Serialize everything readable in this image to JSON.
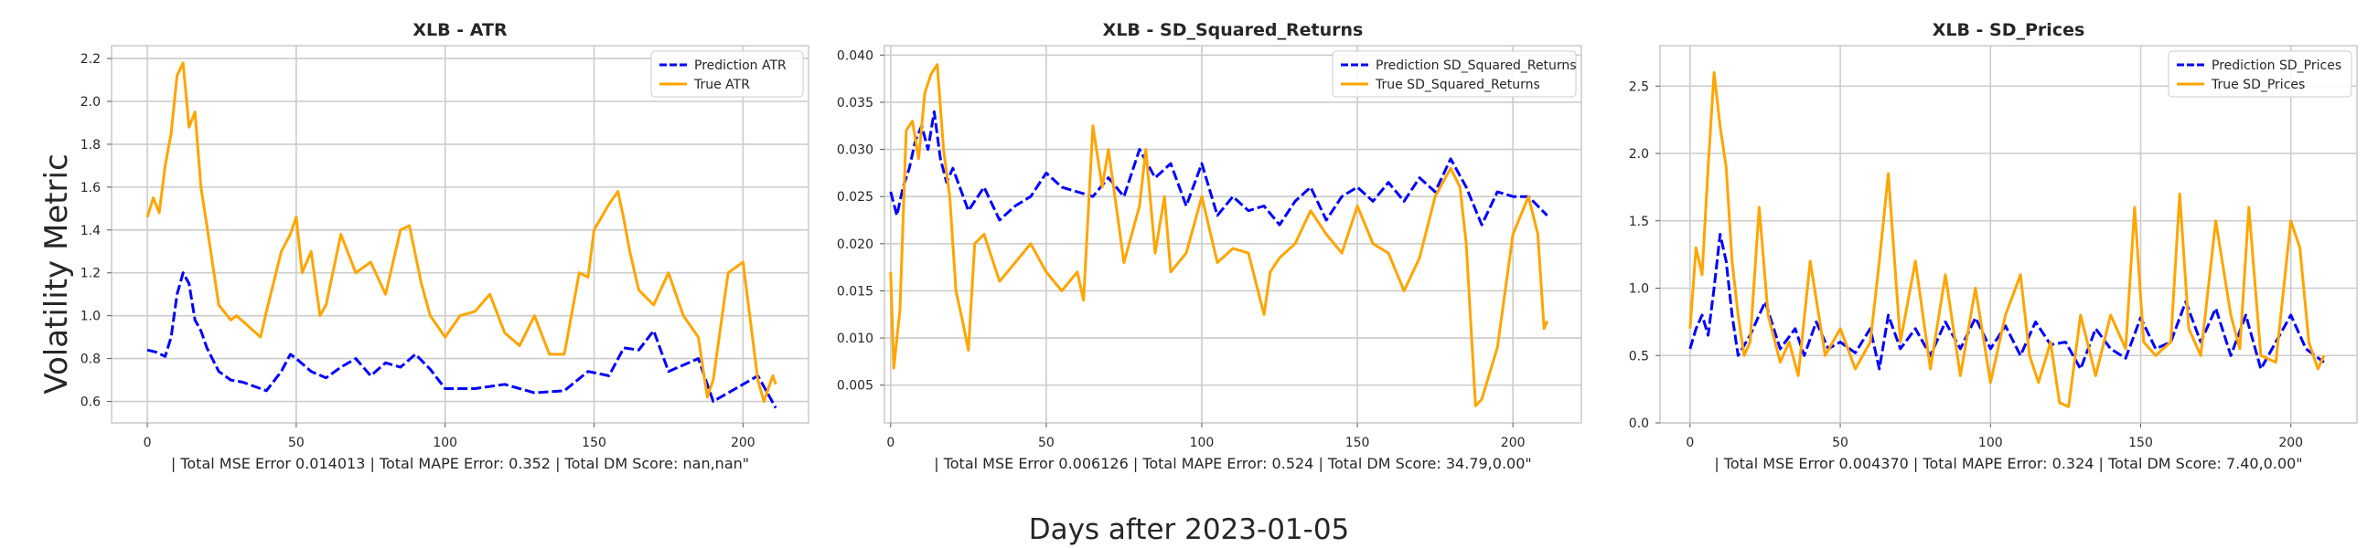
{
  "figure": {
    "suptitle_y": "Volatility Metric",
    "suptitle_x": "Days after 2023-01-05"
  },
  "chart_data": [
    {
      "type": "line",
      "title": "XLB - ATR",
      "xlabel": "| Total MSE Error 0.014013 | Total MAPE Error: 0.352 | Total DM Score: nan,nan\"",
      "ylabel": "",
      "xlim": [
        -12,
        222
      ],
      "ylim": [
        0.5,
        2.26
      ],
      "xticks": [
        0,
        50,
        100,
        150,
        200
      ],
      "yticks": [
        0.6,
        0.8,
        1.0,
        1.2,
        1.4,
        1.6,
        1.8,
        2.0,
        2.2
      ],
      "ytick_labels": [
        "0.6",
        "0.8",
        "1.0",
        "1.2",
        "1.4",
        "1.6",
        "1.8",
        "2.0",
        "2.2"
      ],
      "grid": true,
      "legend": "top-right",
      "series": [
        {
          "name": "Prediction ATR",
          "color": "#0000ff",
          "style": "dashed",
          "x": [
            0,
            3,
            6,
            8,
            10,
            12,
            14,
            16,
            18,
            20,
            24,
            28,
            32,
            36,
            40,
            45,
            48,
            50,
            55,
            60,
            65,
            70,
            75,
            80,
            85,
            90,
            95,
            100,
            110,
            120,
            130,
            140,
            148,
            155,
            160,
            165,
            170,
            175,
            185,
            190,
            200,
            205,
            211
          ],
          "y": [
            0.84,
            0.83,
            0.81,
            0.9,
            1.1,
            1.2,
            1.15,
            0.98,
            0.93,
            0.85,
            0.74,
            0.7,
            0.69,
            0.67,
            0.65,
            0.74,
            0.82,
            0.8,
            0.74,
            0.71,
            0.76,
            0.8,
            0.72,
            0.78,
            0.76,
            0.82,
            0.75,
            0.66,
            0.66,
            0.68,
            0.64,
            0.65,
            0.74,
            0.72,
            0.85,
            0.84,
            0.93,
            0.74,
            0.8,
            0.6,
            0.68,
            0.72,
            0.57
          ]
        },
        {
          "name": "True ATR",
          "color": "#ffa500",
          "style": "solid",
          "x": [
            0,
            2,
            4,
            6,
            8,
            10,
            12,
            14,
            16,
            18,
            20,
            24,
            28,
            30,
            34,
            38,
            40,
            45,
            48,
            50,
            52,
            55,
            58,
            60,
            65,
            70,
            75,
            80,
            85,
            88,
            92,
            95,
            100,
            105,
            110,
            115,
            120,
            125,
            130,
            135,
            140,
            145,
            148,
            150,
            155,
            158,
            160,
            162,
            165,
            170,
            175,
            180,
            185,
            188,
            190,
            195,
            200,
            205,
            207,
            210,
            211
          ],
          "y": [
            1.46,
            1.55,
            1.48,
            1.7,
            1.85,
            2.12,
            2.18,
            1.88,
            1.95,
            1.6,
            1.42,
            1.05,
            0.98,
            1.0,
            0.95,
            0.9,
            1.02,
            1.3,
            1.38,
            1.46,
            1.2,
            1.3,
            1.0,
            1.05,
            1.38,
            1.2,
            1.25,
            1.1,
            1.4,
            1.42,
            1.15,
            1.0,
            0.9,
            1.0,
            1.02,
            1.1,
            0.92,
            0.86,
            1.0,
            0.82,
            0.82,
            1.2,
            1.18,
            1.4,
            1.52,
            1.58,
            1.45,
            1.3,
            1.12,
            1.05,
            1.2,
            1.0,
            0.9,
            0.62,
            0.7,
            1.2,
            1.25,
            0.7,
            0.6,
            0.72,
            0.68
          ]
        }
      ]
    },
    {
      "type": "line",
      "title": "XLB - SD_Squared_Returns",
      "xlabel": "| Total MSE Error 0.006126 | Total MAPE Error: 0.524 | Total DM Score: 34.79,0.00\"",
      "ylabel": "",
      "xlim": [
        -2,
        222
      ],
      "ylim": [
        0.001,
        0.041
      ],
      "xticks": [
        0,
        50,
        100,
        150,
        200
      ],
      "yticks": [
        0.005,
        0.01,
        0.015,
        0.02,
        0.025,
        0.03,
        0.035,
        0.04
      ],
      "ytick_labels": [
        "0.005",
        "0.010",
        "0.015",
        "0.020",
        "0.025",
        "0.030",
        "0.035",
        "0.040"
      ],
      "grid": true,
      "legend": "top-right",
      "series": [
        {
          "name": "Prediction SD_Squared_Returns",
          "color": "#0000ff",
          "style": "dashed",
          "x": [
            0,
            2,
            4,
            6,
            8,
            10,
            12,
            14,
            16,
            18,
            20,
            25,
            30,
            35,
            40,
            45,
            50,
            55,
            60,
            65,
            70,
            75,
            80,
            85,
            90,
            95,
            100,
            105,
            110,
            115,
            120,
            125,
            130,
            135,
            140,
            145,
            150,
            155,
            160,
            165,
            170,
            175,
            180,
            185,
            190,
            195,
            200,
            205,
            211
          ],
          "y": [
            0.0255,
            0.023,
            0.026,
            0.028,
            0.031,
            0.0325,
            0.03,
            0.034,
            0.029,
            0.0265,
            0.028,
            0.0235,
            0.026,
            0.0225,
            0.024,
            0.025,
            0.0275,
            0.026,
            0.0255,
            0.025,
            0.027,
            0.025,
            0.03,
            0.027,
            0.0285,
            0.024,
            0.0285,
            0.023,
            0.025,
            0.0235,
            0.024,
            0.022,
            0.0245,
            0.026,
            0.0225,
            0.025,
            0.026,
            0.0245,
            0.0265,
            0.0245,
            0.027,
            0.0255,
            0.029,
            0.026,
            0.022,
            0.0255,
            0.025,
            0.025,
            0.023
          ]
        },
        {
          "name": "True SD_Squared_Returns",
          "color": "#ffa500",
          "style": "solid",
          "x": [
            0,
            1,
            3,
            5,
            7,
            9,
            11,
            13,
            15,
            17,
            19,
            21,
            23,
            25,
            27,
            30,
            35,
            40,
            45,
            50,
            55,
            60,
            62,
            65,
            68,
            70,
            75,
            80,
            82,
            85,
            88,
            90,
            95,
            100,
            105,
            110,
            115,
            120,
            122,
            125,
            130,
            135,
            140,
            145,
            150,
            155,
            160,
            165,
            170,
            175,
            180,
            183,
            185,
            188,
            190,
            195,
            200,
            205,
            208,
            210,
            211
          ],
          "y": [
            0.017,
            0.0068,
            0.013,
            0.032,
            0.033,
            0.029,
            0.036,
            0.038,
            0.039,
            0.03,
            0.025,
            0.015,
            0.012,
            0.0087,
            0.02,
            0.021,
            0.016,
            0.018,
            0.02,
            0.017,
            0.015,
            0.017,
            0.014,
            0.0325,
            0.026,
            0.03,
            0.018,
            0.024,
            0.03,
            0.019,
            0.025,
            0.017,
            0.019,
            0.025,
            0.018,
            0.0195,
            0.019,
            0.0125,
            0.017,
            0.0185,
            0.02,
            0.0235,
            0.021,
            0.019,
            0.024,
            0.02,
            0.019,
            0.015,
            0.0185,
            0.025,
            0.028,
            0.026,
            0.02,
            0.0028,
            0.0035,
            0.009,
            0.021,
            0.025,
            0.021,
            0.011,
            0.0118
          ]
        }
      ]
    },
    {
      "type": "line",
      "title": "XLB - SD_Prices",
      "xlabel": "| Total MSE Error 0.004370 | Total MAPE Error: 0.324 | Total DM Score: 7.40,0.00\"",
      "ylabel": "",
      "xlim": [
        -10,
        222
      ],
      "ylim": [
        0,
        2.8
      ],
      "xticks": [
        0,
        50,
        100,
        150,
        200
      ],
      "yticks": [
        0.0,
        0.5,
        1.0,
        1.5,
        2.0,
        2.5
      ],
      "ytick_labels": [
        "0.0",
        "0.5",
        "1.0",
        "1.5",
        "2.0",
        "2.5"
      ],
      "grid": true,
      "legend": "top-right",
      "series": [
        {
          "name": "Prediction SD_Prices",
          "color": "#0000ff",
          "style": "dashed",
          "x": [
            0,
            2,
            4,
            6,
            8,
            10,
            12,
            14,
            16,
            20,
            25,
            30,
            35,
            38,
            42,
            46,
            50,
            55,
            60,
            63,
            66,
            70,
            75,
            80,
            85,
            90,
            95,
            100,
            105,
            110,
            115,
            120,
            125,
            130,
            135,
            140,
            145,
            150,
            155,
            160,
            165,
            170,
            175,
            180,
            185,
            190,
            195,
            200,
            205,
            211
          ],
          "y": [
            0.55,
            0.7,
            0.8,
            0.65,
            1.0,
            1.4,
            1.2,
            0.8,
            0.5,
            0.65,
            0.9,
            0.55,
            0.7,
            0.5,
            0.75,
            0.55,
            0.6,
            0.52,
            0.7,
            0.4,
            0.8,
            0.55,
            0.7,
            0.5,
            0.75,
            0.55,
            0.78,
            0.55,
            0.72,
            0.5,
            0.75,
            0.58,
            0.6,
            0.4,
            0.7,
            0.55,
            0.48,
            0.78,
            0.55,
            0.6,
            0.9,
            0.6,
            0.85,
            0.5,
            0.8,
            0.4,
            0.6,
            0.8,
            0.55,
            0.45
          ]
        },
        {
          "name": "True SD_Prices",
          "color": "#ffa500",
          "style": "solid",
          "x": [
            0,
            2,
            4,
            6,
            8,
            10,
            12,
            14,
            16,
            18,
            20,
            23,
            26,
            30,
            33,
            36,
            40,
            45,
            50,
            55,
            60,
            63,
            66,
            70,
            75,
            80,
            85,
            90,
            95,
            100,
            105,
            110,
            113,
            116,
            120,
            123,
            126,
            130,
            135,
            140,
            145,
            148,
            151,
            155,
            160,
            163,
            166,
            170,
            175,
            180,
            183,
            186,
            190,
            195,
            200,
            203,
            206,
            209,
            211
          ],
          "y": [
            0.7,
            1.3,
            1.1,
            1.9,
            2.6,
            2.2,
            1.9,
            1.2,
            0.8,
            0.5,
            0.6,
            1.6,
            0.8,
            0.45,
            0.6,
            0.35,
            1.2,
            0.5,
            0.7,
            0.4,
            0.6,
            1.2,
            1.85,
            0.6,
            1.2,
            0.4,
            1.1,
            0.35,
            1.0,
            0.3,
            0.8,
            1.1,
            0.5,
            0.3,
            0.6,
            0.15,
            0.12,
            0.8,
            0.35,
            0.8,
            0.55,
            1.6,
            0.6,
            0.5,
            0.6,
            1.7,
            0.7,
            0.5,
            1.5,
            0.8,
            0.55,
            1.6,
            0.5,
            0.45,
            1.5,
            1.3,
            0.6,
            0.4,
            0.5
          ]
        }
      ]
    }
  ]
}
